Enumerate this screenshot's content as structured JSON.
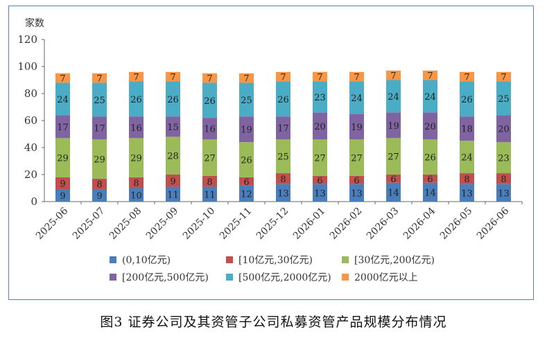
{
  "caption": "图3  证券公司及其资管子公司私募资管产品规模分布情况",
  "chart_data": {
    "type": "bar",
    "stacked": true,
    "title": "",
    "ylabel": "家数",
    "xlabel": "",
    "ylim": [
      0,
      120
    ],
    "yticks": [
      0,
      20,
      40,
      60,
      80,
      100,
      120
    ],
    "grid": false,
    "legend_position": "bottom",
    "categories": [
      "2025-06",
      "2025-07",
      "2025-08",
      "2025-09",
      "2025-10",
      "2025-11",
      "2025-12",
      "2026-01",
      "2026-02",
      "2026-03",
      "2026-04",
      "2026-05",
      "2026-06"
    ],
    "series": [
      {
        "name": "(0,10亿元)",
        "color": "#4a7ebb",
        "values": [
          9,
          9,
          10,
          11,
          11,
          12,
          13,
          13,
          13,
          14,
          14,
          13,
          13
        ]
      },
      {
        "name": "[10亿元,30亿元)",
        "color": "#c0504d",
        "values": [
          9,
          8,
          8,
          9,
          8,
          6,
          8,
          6,
          6,
          6,
          6,
          8,
          8
        ]
      },
      {
        "name": "[30亿元,200亿元)",
        "color": "#9bbb59",
        "values": [
          29,
          29,
          29,
          28,
          27,
          26,
          25,
          27,
          27,
          27,
          26,
          24,
          23
        ]
      },
      {
        "name": "[200亿元,500亿元)",
        "color": "#8064a2",
        "values": [
          17,
          17,
          16,
          15,
          16,
          19,
          17,
          20,
          19,
          19,
          20,
          18,
          20
        ]
      },
      {
        "name": "[500亿元,2000亿元)",
        "color": "#4bacc6",
        "values": [
          24,
          25,
          26,
          26,
          26,
          25,
          26,
          23,
          24,
          24,
          24,
          26,
          25
        ]
      },
      {
        "name": "2000亿元以上",
        "color": "#f79646",
        "values": [
          7,
          7,
          7,
          7,
          7,
          7,
          7,
          7,
          7,
          7,
          7,
          7,
          7
        ]
      }
    ]
  }
}
